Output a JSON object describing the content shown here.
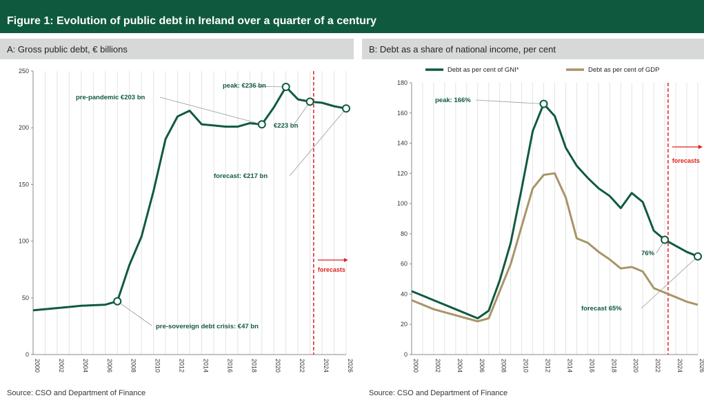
{
  "title": "Figure 1: Evolution of public debt in Ireland over a quarter of a century",
  "colors": {
    "header": "#0f5a3f",
    "gni": "#0f5a3f",
    "gdp": "#a89468",
    "forecast": "#e0201b",
    "grid": "#e3e3e3"
  },
  "panels": [
    {
      "subtitle": "A: Gross public debt, € billions",
      "source": "Source: CSO and Department of Finance"
    },
    {
      "subtitle": "B: Debt as a share of national income, per cent",
      "source": "Source: CSO and Department of Finance"
    }
  ],
  "chart_data": [
    {
      "type": "line",
      "title": "A: Gross public debt, € billions",
      "xlabel": "",
      "ylabel": "",
      "xlim": [
        2000,
        2026
      ],
      "ylim": [
        0,
        250
      ],
      "yticks": [
        "0",
        "50",
        "100",
        "150",
        "200",
        "250"
      ],
      "xticks": [
        "2000",
        "2002",
        "2004",
        "2006",
        "2008",
        "2010",
        "2012",
        "2014",
        "2016",
        "2018",
        "2020",
        "2022",
        "2024",
        "2026"
      ],
      "grid": "vertical",
      "series": [
        {
          "x": [
            2000,
            2001,
            2002,
            2003,
            2004,
            2005,
            2006,
            2007,
            2008,
            2009,
            2010,
            2011,
            2012,
            2013,
            2014,
            2015,
            2016,
            2017,
            2018,
            2019,
            2020,
            2021,
            2022,
            2023,
            2024,
            2025,
            2026
          ],
          "y": [
            39,
            40,
            41,
            42,
            43,
            43.5,
            44,
            47,
            79,
            104,
            144,
            190,
            210,
            215,
            203,
            202,
            201,
            201,
            204,
            203,
            218,
            236,
            225,
            223,
            222,
            219,
            217
          ]
        }
      ],
      "forecast_line_x": 2023.3,
      "forecast_label": "forecasts",
      "annotations": [
        {
          "text": "pre-pandemic €203 bn",
          "x": 2019,
          "y": 203
        },
        {
          "text": "peak: €236 bn",
          "x": 2021,
          "y": 236
        },
        {
          "text": "€223 bn",
          "x": 2023,
          "y": 223
        },
        {
          "text": "forecast: €217 bn",
          "x": 2026,
          "y": 217
        },
        {
          "text": "pre-sovereign debt crisis: €47 bn",
          "x": 2007,
          "y": 47
        }
      ]
    },
    {
      "type": "line",
      "title": "B: Debt as a share of national income, per cent",
      "xlabel": "",
      "ylabel": "",
      "xlim": [
        2000,
        2026
      ],
      "ylim": [
        0,
        180
      ],
      "yticks": [
        "0",
        "20",
        "40",
        "60",
        "80",
        "100",
        "120",
        "140",
        "160",
        "180"
      ],
      "xticks": [
        "2000",
        "2002",
        "2004",
        "2006",
        "2008",
        "2010",
        "2012",
        "2014",
        "2016",
        "2018",
        "2020",
        "2022",
        "2024",
        "2026"
      ],
      "grid": "vertical",
      "legend": "top",
      "series": [
        {
          "name": "Debt as per cent of GNI*",
          "x": [
            2000,
            2001,
            2002,
            2003,
            2004,
            2005,
            2006,
            2007,
            2008,
            2009,
            2010,
            2011,
            2012,
            2013,
            2014,
            2015,
            2016,
            2017,
            2018,
            2019,
            2020,
            2021,
            2022,
            2023,
            2024,
            2025,
            2026
          ],
          "y": [
            42,
            39,
            36,
            33,
            30,
            27,
            24,
            29,
            49,
            74,
            110,
            148,
            166,
            158,
            137,
            125,
            117,
            110,
            105,
            97,
            107,
            101,
            82,
            76,
            72,
            68,
            65
          ]
        },
        {
          "name": "Debt as per cent of GDP",
          "x": [
            2000,
            2001,
            2002,
            2003,
            2004,
            2005,
            2006,
            2007,
            2008,
            2009,
            2010,
            2011,
            2012,
            2013,
            2014,
            2015,
            2016,
            2017,
            2018,
            2019,
            2020,
            2021,
            2022,
            2023,
            2024,
            2025,
            2026
          ],
          "y": [
            36,
            33,
            30,
            28,
            26,
            24,
            22,
            24,
            42,
            60,
            85,
            110,
            119,
            120,
            104,
            77,
            74,
            68,
            63,
            57,
            58,
            55,
            44,
            41,
            38,
            35,
            33
          ]
        }
      ],
      "forecast_line_x": 2023.3,
      "forecast_label": "forecasts",
      "annotations": [
        {
          "text": "peak: 166%",
          "x": 2012,
          "y": 166
        },
        {
          "text": "76%",
          "x": 2023,
          "y": 76
        },
        {
          "text": "forecast 65%",
          "x": 2026,
          "y": 65
        }
      ]
    }
  ]
}
